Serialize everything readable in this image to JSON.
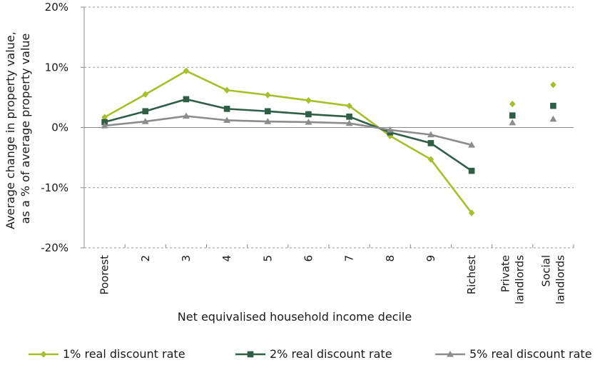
{
  "chart_data": {
    "type": "line",
    "xlabel": "Net equivalised household income decile",
    "ylabel": [
      "Average change in property value,",
      "as a % of average property value"
    ],
    "ylim": [
      -20,
      20
    ],
    "yticks": [
      -20,
      -10,
      0,
      10,
      20
    ],
    "ytick_labels": [
      "-20%",
      "-10%",
      "0%",
      "10%",
      "20%"
    ],
    "grid": "horizontal-dashed",
    "legend_position": "bottom",
    "categories": [
      [
        "Poorest"
      ],
      [
        "2"
      ],
      [
        "3"
      ],
      [
        "4"
      ],
      [
        "5"
      ],
      [
        "6"
      ],
      [
        "7"
      ],
      [
        "8"
      ],
      [
        "9"
      ],
      [
        "Richest"
      ],
      [
        "Private",
        "landlords"
      ],
      [
        "Social",
        "landlords"
      ]
    ],
    "line_points": 10,
    "series": [
      {
        "name": "1% real discount rate",
        "color": "#a8bf2a",
        "marker": "diamond",
        "values": [
          1.7,
          5.5,
          9.4,
          6.2,
          5.4,
          4.5,
          3.6,
          -1.4,
          -5.3,
          -14.2,
          3.9,
          7.1
        ]
      },
      {
        "name": "2% real discount rate",
        "color": "#2e5e46",
        "marker": "square",
        "values": [
          0.9,
          2.7,
          4.7,
          3.1,
          2.7,
          2.2,
          1.8,
          -0.8,
          -2.6,
          -7.2,
          2.0,
          3.6
        ]
      },
      {
        "name": "5% real discount rate",
        "color": "#8c8c8c",
        "marker": "triangle",
        "values": [
          0.3,
          1.0,
          1.9,
          1.2,
          1.0,
          0.9,
          0.7,
          -0.4,
          -1.2,
          -2.9,
          0.8,
          1.4
        ]
      }
    ]
  }
}
